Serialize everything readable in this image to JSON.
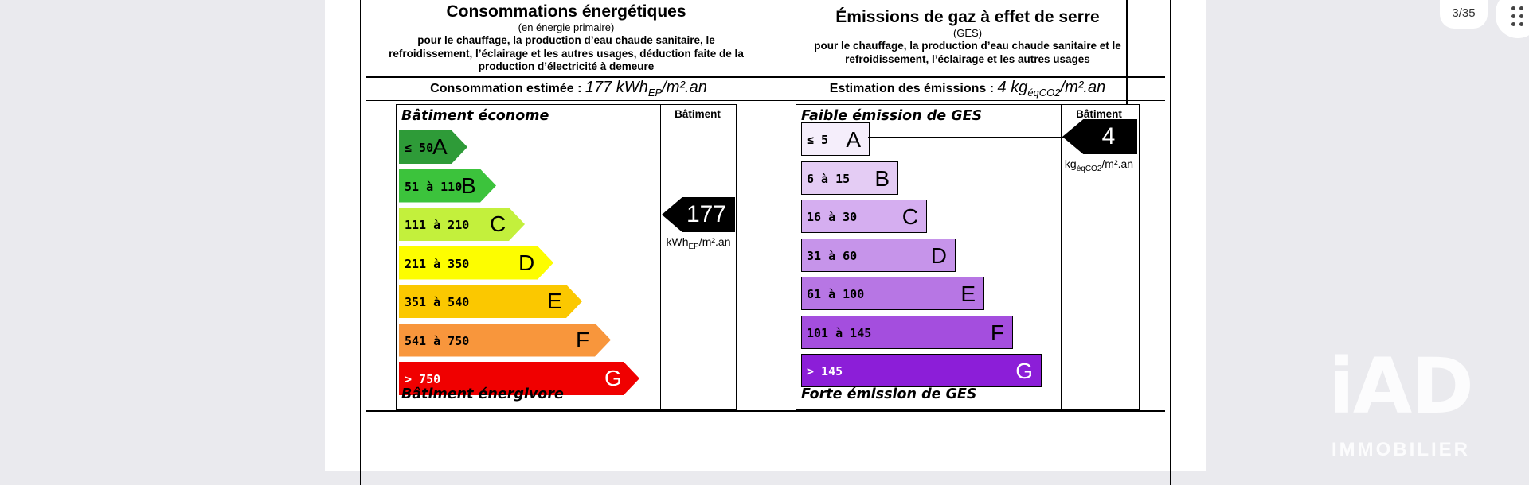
{
  "viewer": {
    "page_counter": "3/35",
    "menu_icon": "dots-grid-icon",
    "watermark": {
      "logo": "iAD",
      "sub": "IMMOBILIER"
    }
  },
  "energy": {
    "title": "Consommations énergétiques",
    "subtitle": "(en énergie primaire)",
    "description": "pour le chauffage, la production d’eau chaude sanitaire, le refroidissement, l’éclairage et les autres usages, déduction faite de la production d’électricité à demeure",
    "estimate_label": "Consommation estimée :",
    "estimate_value": "177 kWh",
    "estimate_sub": "EP",
    "estimate_suffix": "/m².an",
    "top_label": "Bâtiment économe",
    "bottom_label": "Bâtiment énergivore",
    "column_header": "Bâtiment",
    "marker_value": "177",
    "unit_main": "kWh",
    "unit_sub": "EP",
    "unit_suffix": "/m².an",
    "classes": [
      {
        "range": "≤ 50",
        "letter": "A",
        "color": "#2e9b38"
      },
      {
        "range": "51 à 110",
        "letter": "B",
        "color": "#3cc33c"
      },
      {
        "range": "111 à 210",
        "letter": "C",
        "color": "#c3f03c"
      },
      {
        "range": "211 à 350",
        "letter": "D",
        "color": "#fdfd00"
      },
      {
        "range": "351 à 540",
        "letter": "E",
        "color": "#fbc800"
      },
      {
        "range": "541 à 750",
        "letter": "F",
        "color": "#f8963c"
      },
      {
        "range": "> 750",
        "letter": "G",
        "color": "#f00000"
      }
    ]
  },
  "ges": {
    "title": "Émissions de gaz à effet de serre",
    "subtitle": "(GES)",
    "description": "pour le chauffage, la production d’eau chaude sanitaire et le refroidissement, l’éclairage et les autres usages",
    "estimate_label": "Estimation des émissions :",
    "estimate_value": "4 kg",
    "estimate_sub": "éqCO2",
    "estimate_suffix": "/m².an",
    "top_label": "Faible émission de GES",
    "bottom_label": "Forte émission de GES",
    "column_header": "Bâtiment",
    "marker_value": "4",
    "unit_main": "kg",
    "unit_sub": "éqCO2",
    "unit_suffix": "/m².an",
    "classes": [
      {
        "range": "≤ 5",
        "letter": "A",
        "color": "#f5eefb"
      },
      {
        "range": "6 à 15",
        "letter": "B",
        "color": "#e4ccf4"
      },
      {
        "range": "16 à 30",
        "letter": "C",
        "color": "#d5aef0"
      },
      {
        "range": "31 à 60",
        "letter": "D",
        "color": "#c694ea"
      },
      {
        "range": "61 à 100",
        "letter": "E",
        "color": "#b776e4"
      },
      {
        "range": "101 à 145",
        "letter": "F",
        "color": "#a44ede"
      },
      {
        "range": "> 145",
        "letter": "G",
        "color": "#8c1ed8"
      }
    ]
  }
}
